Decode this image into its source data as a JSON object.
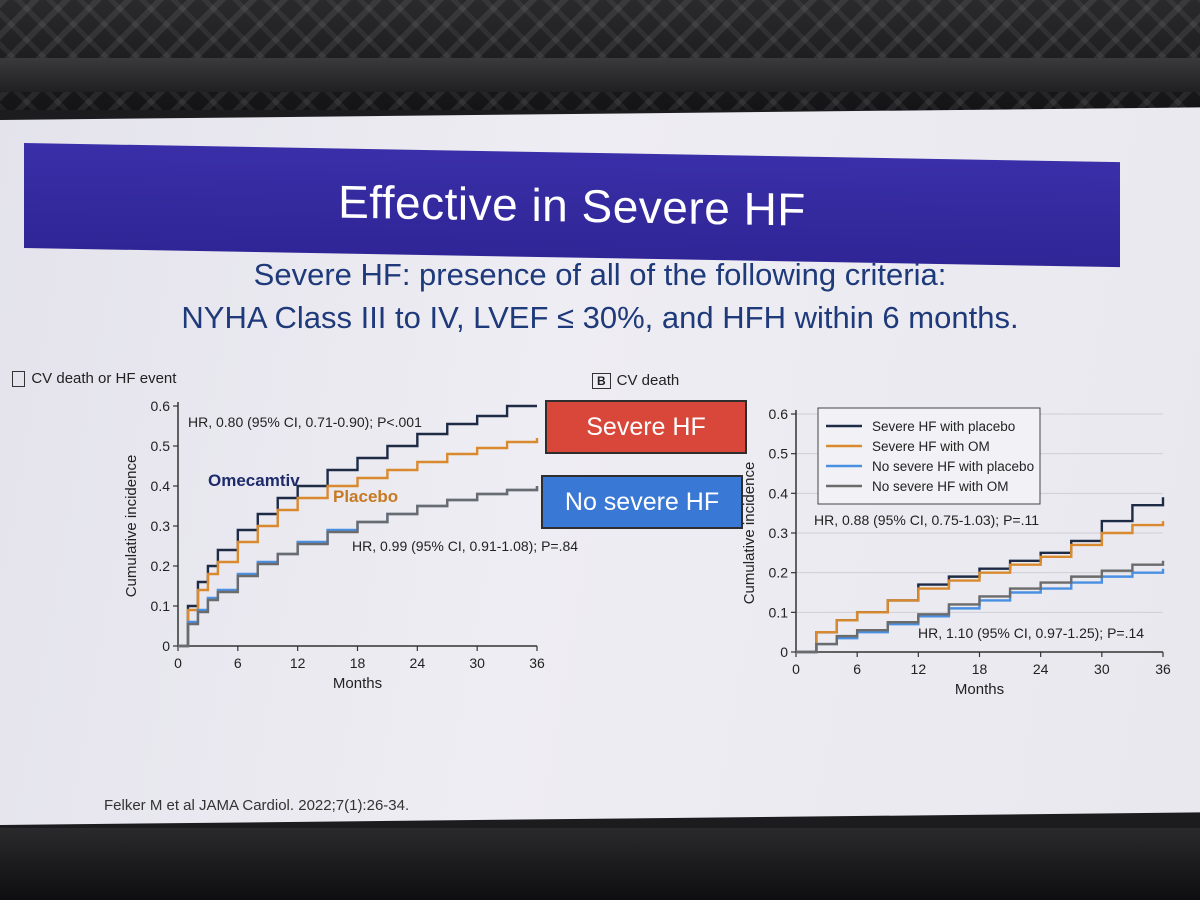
{
  "slide": {
    "title": "Effective in Severe HF",
    "subtitle_lines": [
      "Severe HF: presence of all of the following criteria:",
      "NYHA Class III to IV, LVEF ≤ 30%, and HFH within 6 months."
    ],
    "citation": "Felker M et al JAMA Cardiol. 2022;7(1):26-34.",
    "tag_severe": "Severe HF",
    "tag_no_severe": "No severe HF",
    "colors": {
      "title_bar": "#3a2fa8",
      "subtitle": "#1f3a7a",
      "tag_severe": "#d9463a",
      "tag_no_severe": "#3a78d6"
    }
  },
  "chart_data": [
    {
      "type": "line",
      "panel_label": "CV death or HF event",
      "xlabel": "Months",
      "ylabel": "Cumulative incidence",
      "xlim": [
        0,
        36
      ],
      "ylim": [
        0,
        0.6
      ],
      "xticks": [
        "0",
        "6",
        "12",
        "18",
        "24",
        "30",
        "36"
      ],
      "yticks": [
        "0",
        "0.1",
        "0.2",
        "0.3",
        "0.4",
        "0.5",
        "0.6"
      ],
      "grid": false,
      "annotations": [
        "HR, 0.80 (95% CI, 0.71-0.90); P<.001",
        "HR, 0.99 (95% CI, 0.91-1.08); P=.84"
      ],
      "series_labels": [
        "Omecamtiv",
        "Placebo"
      ],
      "series": [
        {
          "color": "#1d2b45",
          "x": [
            0,
            1,
            2,
            3,
            4,
            6,
            8,
            10,
            12,
            15,
            18,
            21,
            24,
            27,
            30,
            33,
            36
          ],
          "y": [
            0,
            0.1,
            0.16,
            0.2,
            0.24,
            0.29,
            0.33,
            0.37,
            0.4,
            0.44,
            0.47,
            0.5,
            0.53,
            0.555,
            0.575,
            0.6,
            0.6
          ]
        },
        {
          "color": "#d98a2e",
          "x": [
            0,
            1,
            2,
            3,
            4,
            6,
            8,
            10,
            12,
            15,
            18,
            21,
            24,
            27,
            30,
            33,
            36
          ],
          "y": [
            0,
            0.09,
            0.14,
            0.18,
            0.21,
            0.26,
            0.3,
            0.34,
            0.37,
            0.4,
            0.42,
            0.44,
            0.46,
            0.48,
            0.495,
            0.51,
            0.52
          ]
        },
        {
          "color": "#4a90e2",
          "x": [
            0,
            1,
            2,
            3,
            4,
            6,
            8,
            10,
            12,
            15,
            18,
            21,
            24,
            27,
            30,
            33,
            36
          ],
          "y": [
            0,
            0.06,
            0.09,
            0.12,
            0.14,
            0.18,
            0.21,
            0.23,
            0.26,
            0.29,
            0.31,
            0.33,
            0.35,
            0.365,
            0.38,
            0.39,
            0.4
          ]
        },
        {
          "color": "#6b6b6b",
          "x": [
            0,
            1,
            2,
            3,
            4,
            6,
            8,
            10,
            12,
            15,
            18,
            21,
            24,
            27,
            30,
            33,
            36
          ],
          "y": [
            0,
            0.055,
            0.085,
            0.115,
            0.135,
            0.175,
            0.205,
            0.23,
            0.255,
            0.285,
            0.31,
            0.33,
            0.35,
            0.365,
            0.38,
            0.39,
            0.4
          ]
        }
      ]
    },
    {
      "type": "line",
      "panel_letter": "B",
      "panel_label": "CV death",
      "xlabel": "Months",
      "ylabel": "Cumulative incidence",
      "xlim": [
        0,
        36
      ],
      "ylim": [
        0,
        0.6
      ],
      "xticks": [
        "0",
        "6",
        "12",
        "18",
        "24",
        "30",
        "36"
      ],
      "yticks": [
        "0",
        "0.1",
        "0.2",
        "0.3",
        "0.4",
        "0.5",
        "0.6"
      ],
      "grid": true,
      "legend_position": "top-right",
      "annotations": [
        "HR, 0.88 (95% CI, 0.75-1.03); P=.11",
        "HR, 1.10 (95% CI, 0.97-1.25); P=.14"
      ],
      "series": [
        {
          "name": "Severe HF with placebo",
          "color": "#1d2b45",
          "x": [
            0,
            2,
            4,
            6,
            9,
            12,
            15,
            18,
            21,
            24,
            27,
            30,
            33,
            36
          ],
          "y": [
            0,
            0.05,
            0.08,
            0.1,
            0.13,
            0.17,
            0.19,
            0.21,
            0.23,
            0.25,
            0.28,
            0.33,
            0.37,
            0.39
          ]
        },
        {
          "name": "Severe HF with OM",
          "color": "#d98a2e",
          "x": [
            0,
            2,
            4,
            6,
            9,
            12,
            15,
            18,
            21,
            24,
            27,
            30,
            33,
            36
          ],
          "y": [
            0,
            0.05,
            0.08,
            0.1,
            0.13,
            0.16,
            0.18,
            0.2,
            0.22,
            0.24,
            0.27,
            0.3,
            0.32,
            0.33
          ]
        },
        {
          "name": "No severe HF with placebo",
          "color": "#4a90e2",
          "x": [
            0,
            2,
            4,
            6,
            9,
            12,
            15,
            18,
            21,
            24,
            27,
            30,
            33,
            36
          ],
          "y": [
            0,
            0.02,
            0.035,
            0.05,
            0.07,
            0.09,
            0.11,
            0.13,
            0.15,
            0.16,
            0.175,
            0.19,
            0.2,
            0.21
          ]
        },
        {
          "name": "No severe HF with OM",
          "color": "#6b6b6b",
          "x": [
            0,
            2,
            4,
            6,
            9,
            12,
            15,
            18,
            21,
            24,
            27,
            30,
            33,
            36
          ],
          "y": [
            0,
            0.02,
            0.04,
            0.055,
            0.075,
            0.095,
            0.12,
            0.14,
            0.16,
            0.175,
            0.19,
            0.205,
            0.22,
            0.23
          ]
        }
      ]
    }
  ]
}
